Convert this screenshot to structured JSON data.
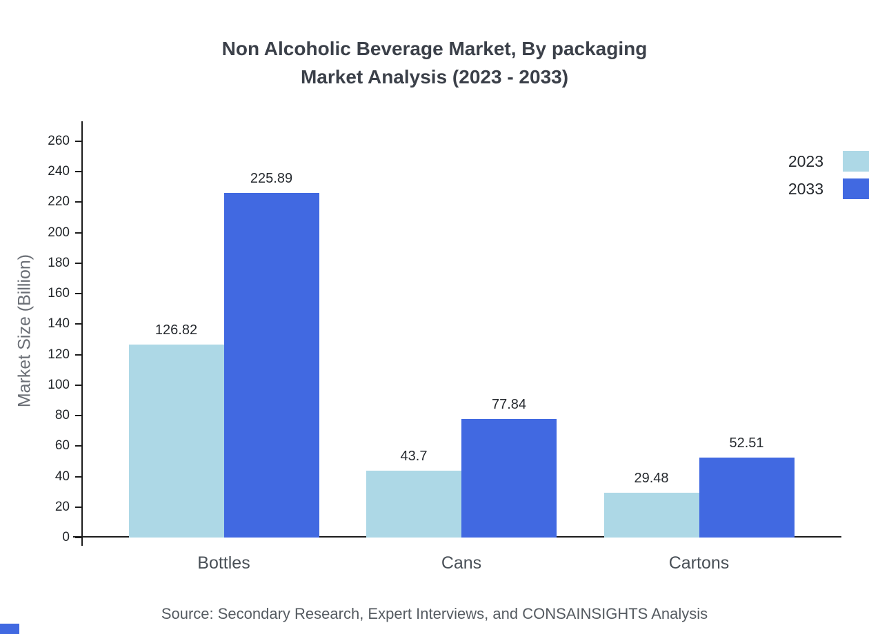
{
  "chart_data": {
    "type": "bar",
    "title_line1": "Non Alcoholic Beverage Market, By packaging",
    "title_line2": "Market Analysis (2023 - 2033)",
    "ylabel": "Market Size (Billion)",
    "categories": [
      "Bottles",
      "Cans",
      "Cartons"
    ],
    "series": [
      {
        "name": "2023",
        "color": "#add8e6",
        "values": [
          126.82,
          43.7,
          29.48
        ]
      },
      {
        "name": "2033",
        "color": "#4169e1",
        "values": [
          225.89,
          77.84,
          52.51
        ]
      }
    ],
    "yticks": [
      0,
      20,
      40,
      60,
      80,
      100,
      120,
      140,
      160,
      180,
      200,
      220,
      240,
      260
    ],
    "ylim": [
      0,
      260
    ],
    "grid": false,
    "legend_position": "top-right",
    "accent_color": "#4169e1",
    "source": "Source: Secondary Research, Expert Interviews, and CONSAINSIGHTS Analysis"
  }
}
